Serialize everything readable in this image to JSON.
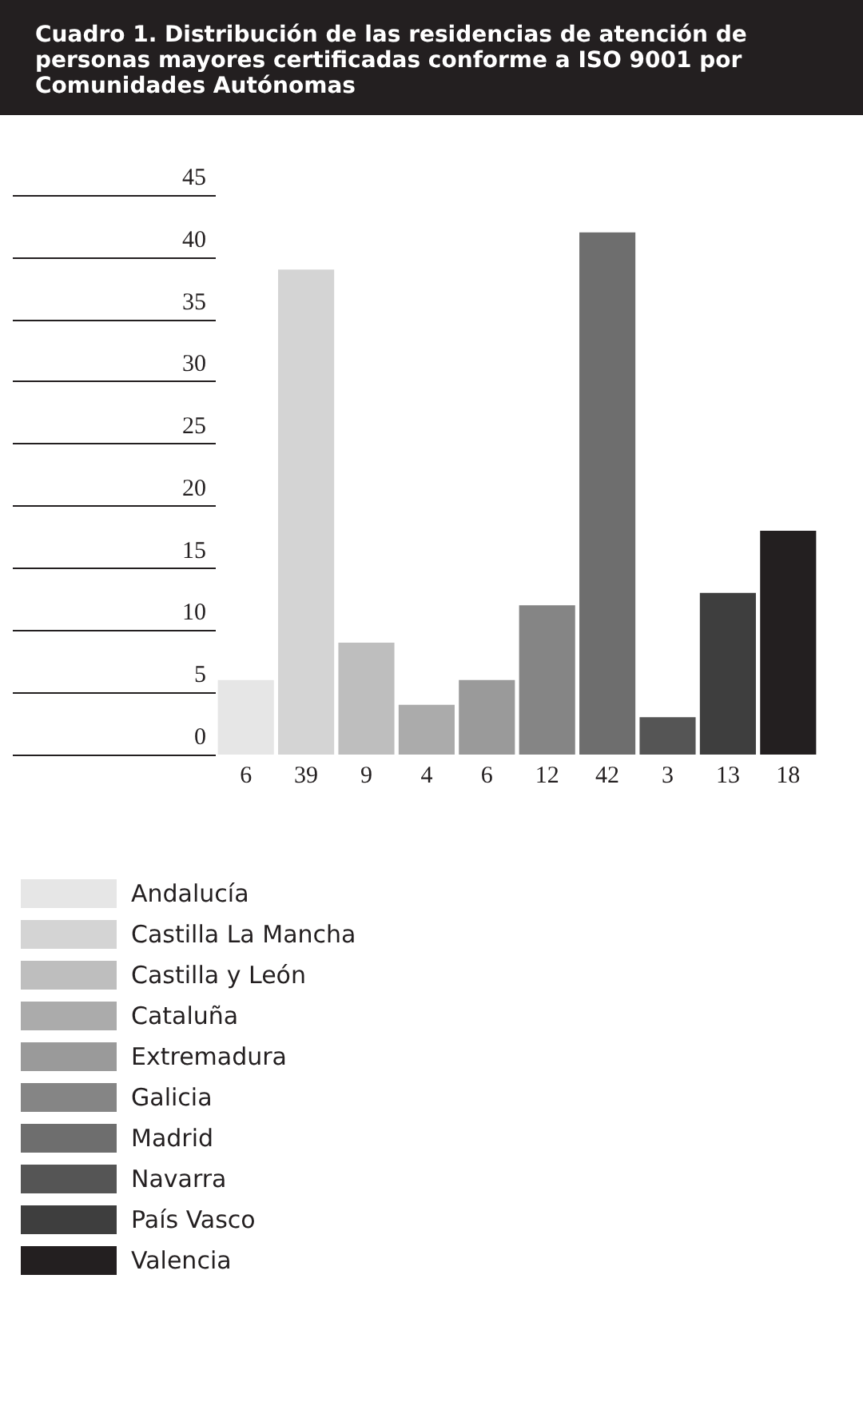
{
  "chart_data": {
    "type": "bar",
    "title": "Cuadro 1. Distribución de las residencias de atención de personas mayores certificadas conforme a ISO 9001 por Comunidades Autónomas",
    "categories": [
      null,
      null,
      null,
      null,
      null,
      null,
      null,
      null,
      null,
      null
    ],
    "series": [
      {
        "name": "Andalucía",
        "color": "#e6e6e6",
        "values": [
          6,
          null,
          null,
          null,
          null,
          null,
          null,
          null,
          null,
          null
        ]
      },
      {
        "name": "Castilla La Mancha",
        "color": "#d4d4d4",
        "values": [
          null,
          39,
          null,
          null,
          null,
          null,
          null,
          null,
          null,
          null
        ]
      },
      {
        "name": "Castilla y León",
        "color": "#bebebe",
        "values": [
          null,
          null,
          9,
          null,
          null,
          null,
          null,
          null,
          null,
          null
        ]
      },
      {
        "name": "Cataluña",
        "color": "#ababab",
        "values": [
          null,
          null,
          null,
          4,
          null,
          null,
          null,
          null,
          null,
          null
        ]
      },
      {
        "name": "Extremadura",
        "color": "#9a9a9a",
        "values": [
          null,
          null,
          null,
          null,
          6,
          null,
          null,
          null,
          null,
          null
        ]
      },
      {
        "name": "Galicia",
        "color": "#858585",
        "values": [
          null,
          null,
          null,
          null,
          null,
          12,
          null,
          null,
          null,
          null
        ]
      },
      {
        "name": "Madrid",
        "color": "#6e6e6e",
        "values": [
          null,
          null,
          null,
          null,
          null,
          null,
          42,
          null,
          null,
          null
        ]
      },
      {
        "name": "Navarra",
        "color": "#555555",
        "values": [
          null,
          null,
          null,
          null,
          null,
          null,
          null,
          3,
          null,
          null
        ]
      },
      {
        "name": "País Vasco",
        "color": "#3e3e3e",
        "values": [
          null,
          null,
          null,
          null,
          null,
          null,
          null,
          null,
          13,
          null
        ]
      },
      {
        "name": "Valencia",
        "color": "#231f20",
        "values": [
          null,
          null,
          null,
          null,
          null,
          null,
          null,
          null,
          null,
          18
        ]
      }
    ],
    "ylim": [
      0,
      45
    ],
    "yticks": [
      0,
      5,
      10,
      15,
      20,
      25,
      30,
      35,
      40,
      45
    ],
    "stacked": true,
    "data_labels": true,
    "legend": "bottom left",
    "tick_labels": "y"
  }
}
